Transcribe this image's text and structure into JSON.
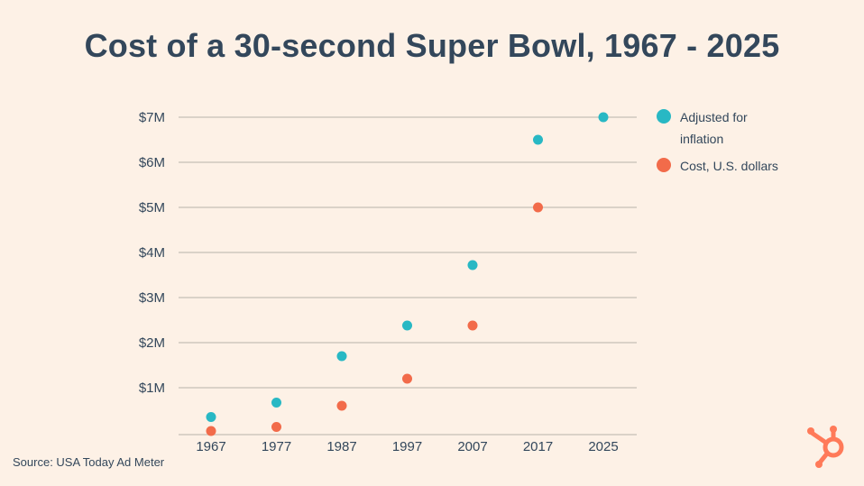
{
  "title": "Cost of a 30-second Super Bowl, 1967 - 2025",
  "source": "Source: USA Today Ad Meter",
  "logo_icon": "hubspot-sprocket-icon",
  "colors": {
    "background": "#fdf1e6",
    "text": "#33475b",
    "grid": "#cfc7bd",
    "inflation": "#28b8c4",
    "cost": "#f26b4a",
    "logo": "#ff7a59"
  },
  "chart_data": {
    "type": "scatter",
    "title": "Cost of a 30-second Super Bowl, 1967 - 2025",
    "categories": [
      "1967",
      "1977",
      "1987",
      "1997",
      "2007",
      "2017",
      "2025"
    ],
    "y_tick_labels": [
      "$1M",
      "$2M",
      "$3M",
      "$4M",
      "$5M",
      "$6M",
      "$7M"
    ],
    "y_tick_values": [
      1,
      2,
      3,
      4,
      5,
      6,
      7
    ],
    "ylim": [
      0,
      7
    ],
    "y_units": "millions of U.S. dollars",
    "grid": "horizontal",
    "legend_position": "right",
    "series": [
      {
        "name": "Adjusted for inflation",
        "color": "#28b8c4",
        "values": [
          0.35,
          0.67,
          1.7,
          2.38,
          3.72,
          6.5,
          7.0
        ]
      },
      {
        "name": "Cost,  U.S. dollars",
        "color": "#f26b4a",
        "values": [
          0.04,
          0.13,
          0.6,
          1.2,
          2.38,
          5.0,
          null
        ]
      }
    ]
  }
}
